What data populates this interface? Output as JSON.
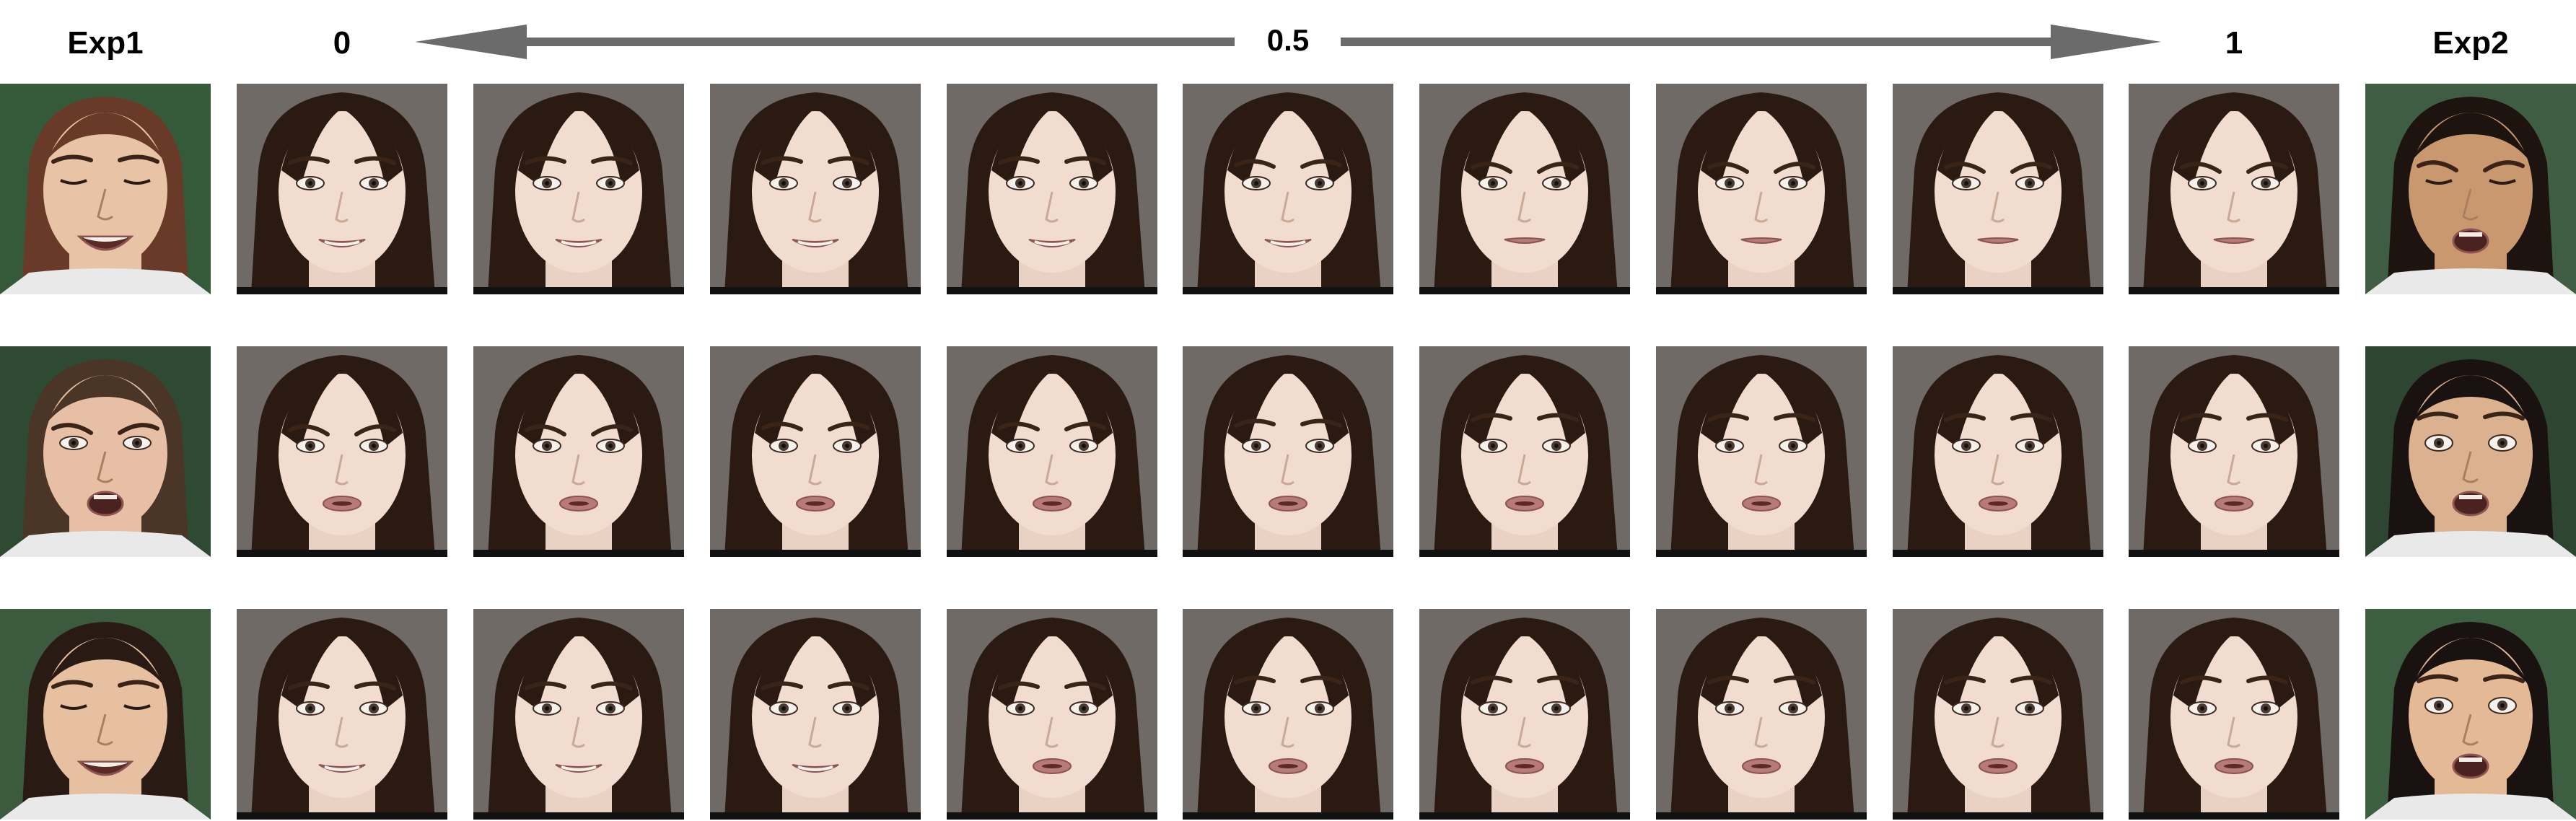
{
  "header": {
    "exp1_label": "Exp1",
    "start_label": "0",
    "mid_label": "0.5",
    "end_label": "1",
    "exp2_label": "Exp2"
  },
  "colors": {
    "arrow": "#6b6b6b",
    "target_background": "#6f6a66",
    "source_background": "#35513a",
    "target_hair": "#2a1a12",
    "target_skin": "#f1dccf",
    "source_skin": "#e8c0a2",
    "lip": "#b77a76"
  },
  "rows": [
    {
      "exp1": {
        "expression": "smile",
        "hair": "#6a3a28",
        "bg": "#355a3a",
        "skin": "#e9c3a6",
        "eyes": "squint",
        "mouth": "open-smile"
      },
      "frames": [
        {
          "mouth": "smile",
          "brow": "neutral"
        },
        {
          "mouth": "smile",
          "brow": "neutral"
        },
        {
          "mouth": "smile",
          "brow": "neutral"
        },
        {
          "mouth": "smile",
          "brow": "neutral"
        },
        {
          "mouth": "smile",
          "brow": "slight-frown"
        },
        {
          "mouth": "neutral",
          "brow": "frown"
        },
        {
          "mouth": "neutral",
          "brow": "frown"
        },
        {
          "mouth": "neutral",
          "brow": "frown"
        },
        {
          "mouth": "neutral",
          "brow": "frown"
        }
      ],
      "exp2": {
        "expression": "disgust",
        "hair": "#1d1410",
        "bg": "#3f5d43",
        "skin": "#c9986f",
        "eyes": "squint",
        "mouth": "open"
      }
    },
    {
      "exp1": {
        "expression": "frown",
        "hair": "#4a3526",
        "bg": "#2f4a33",
        "skin": "#e6bfa4",
        "eyes": "normal",
        "mouth": "open"
      },
      "frames": [
        {
          "mouth": "open-small",
          "brow": "frown"
        },
        {
          "mouth": "open-small",
          "brow": "frown"
        },
        {
          "mouth": "open-small",
          "brow": "slight-frown"
        },
        {
          "mouth": "open-small",
          "brow": "slight-frown"
        },
        {
          "mouth": "open-small",
          "brow": "neutral"
        },
        {
          "mouth": "open-small",
          "brow": "raised"
        },
        {
          "mouth": "open-small",
          "brow": "raised"
        },
        {
          "mouth": "open-small",
          "brow": "raised"
        },
        {
          "mouth": "open-small",
          "brow": "raised"
        }
      ],
      "exp2": {
        "expression": "surprise",
        "hair": "#1a1210",
        "bg": "#2e4532",
        "skin": "#dcb190",
        "eyes": "wide",
        "mouth": "open"
      }
    },
    {
      "exp1": {
        "expression": "happy-eyes-closed",
        "hair": "#2a1a14",
        "bg": "#3b5a3e",
        "skin": "#e7c0a2",
        "eyes": "closed",
        "mouth": "open-smile"
      },
      "frames": [
        {
          "mouth": "smile",
          "brow": "neutral"
        },
        {
          "mouth": "smile",
          "brow": "neutral"
        },
        {
          "mouth": "smile",
          "brow": "neutral"
        },
        {
          "mouth": "open-small",
          "brow": "neutral"
        },
        {
          "mouth": "open-small",
          "brow": "raised"
        },
        {
          "mouth": "open-small",
          "brow": "raised"
        },
        {
          "mouth": "open-small",
          "brow": "raised"
        },
        {
          "mouth": "open-small",
          "brow": "raised"
        },
        {
          "mouth": "open-small",
          "brow": "raised"
        }
      ],
      "exp2": {
        "expression": "surprise",
        "hair": "#1a1210",
        "bg": "#3e5e42",
        "skin": "#e3b996",
        "eyes": "wide",
        "mouth": "open"
      }
    }
  ]
}
